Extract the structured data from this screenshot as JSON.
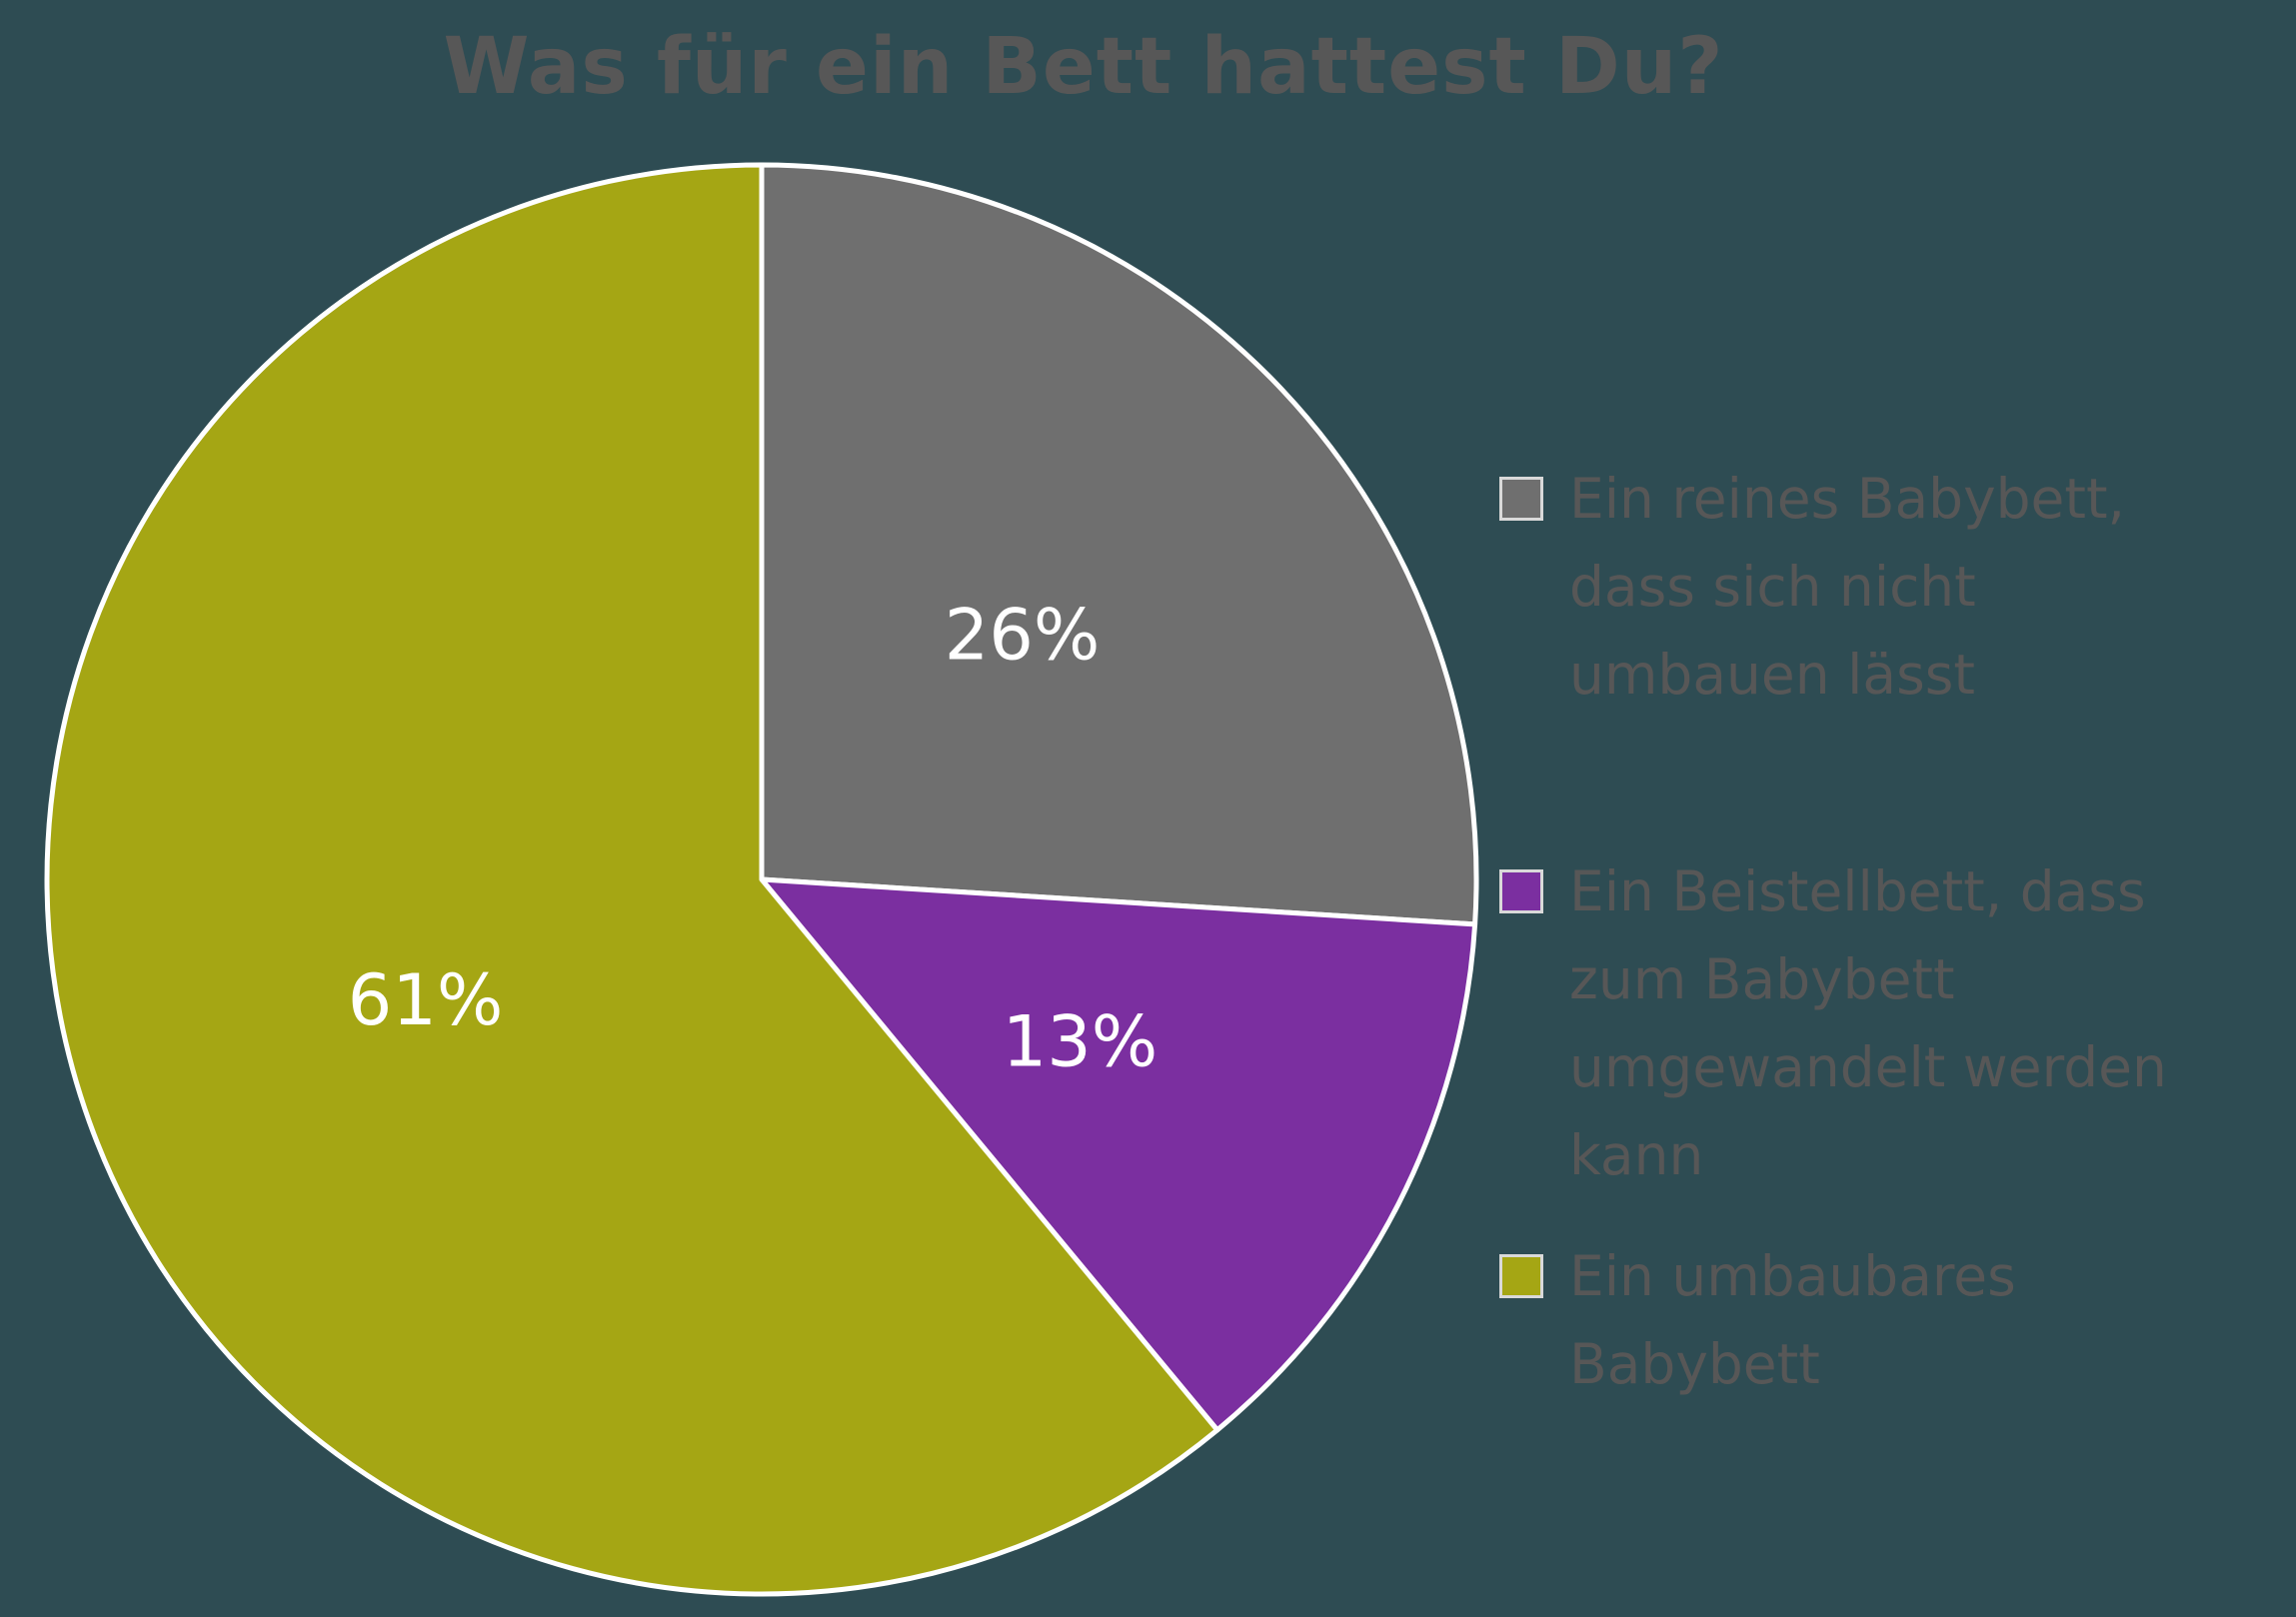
{
  "page": {
    "background_color": "#2e4c53"
  },
  "chart_data": {
    "type": "pie",
    "title": "Was für ein Bett hattest Du?",
    "title_color": "#575757",
    "legend_position": "right",
    "direction": "clockwise",
    "start_angle_deg": 0,
    "slice_border_color": "#ffffff",
    "data_label_color": "#ffffff",
    "legend_text_color": "#575757",
    "slices": [
      {
        "label": "Ein reines Babybett, dass sich nicht umbauen lässt",
        "lines": [
          "Ein reines Babybett,",
          "dass sich nicht",
          "umbauen lässt"
        ],
        "value": 26,
        "data_label": "26%",
        "color": "#6f6f6f"
      },
      {
        "label": "Ein Beistellbett, dass zum Babybett umgewandelt werden kann",
        "lines": [
          "Ein Beistellbett, dass",
          "zum Babybett",
          "umgewandelt werden",
          "kann"
        ],
        "value": 13,
        "data_label": "13%",
        "color": "#7b2fa0"
      },
      {
        "label": "Ein umbaubares Babybett",
        "lines": [
          "Ein umbaubares",
          "Babybett"
        ],
        "value": 61,
        "data_label": "61%",
        "color": "#a5a614"
      }
    ]
  }
}
